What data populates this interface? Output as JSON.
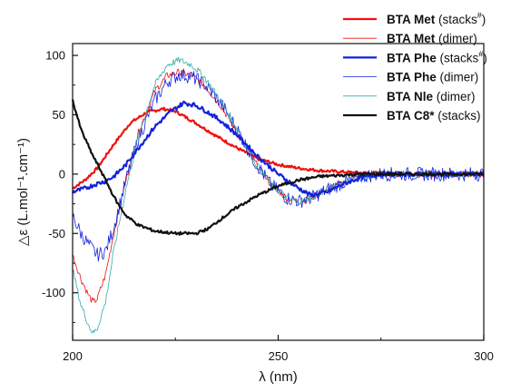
{
  "chart_data": {
    "type": "line",
    "xlabel": "λ (nm)",
    "ylabel": "△ε (L.mol⁻¹.cm⁻¹)",
    "xlim": [
      200,
      300
    ],
    "ylim": [
      -140,
      110
    ],
    "x_ticks": [
      "200",
      "250",
      "300"
    ],
    "y_ticks": [
      "100",
      "50",
      "0",
      "-50",
      "-100"
    ],
    "x_tick_values": [
      200,
      250,
      300
    ],
    "y_tick_values": [
      100,
      50,
      0,
      -50,
      -100
    ],
    "legend_position": "top-right",
    "series": [
      {
        "name_bold": "BTA Met",
        "name_rest": " (stacks",
        "name_sup": "#",
        "name_close": ")",
        "color": "#ee1111",
        "width": 2.2,
        "noise": 1.2,
        "x": [
          200,
          203,
          206,
          210,
          214,
          218,
          222,
          225,
          230,
          235,
          240,
          245,
          250,
          255,
          260,
          265,
          270,
          275,
          280,
          290,
          300
        ],
        "y": [
          -12,
          -5,
          5,
          25,
          43,
          52,
          55,
          53,
          43,
          32,
          22,
          13,
          8,
          5,
          3,
          2,
          1,
          1,
          0,
          0,
          0
        ]
      },
      {
        "name_bold": "BTA Met",
        "name_rest": " (dimer)",
        "name_sup": "",
        "name_close": "",
        "color": "#ee1111",
        "width": 0.8,
        "noise": 3,
        "x": [
          200,
          202,
          204,
          205,
          206,
          208,
          210,
          213,
          216,
          220,
          223,
          226,
          229,
          232,
          236,
          240,
          244,
          248,
          252,
          255,
          258,
          262,
          266,
          270,
          275,
          280,
          290,
          300
        ],
        "y": [
          -68,
          -88,
          -103,
          -108,
          -105,
          -85,
          -50,
          -5,
          35,
          70,
          83,
          86,
          83,
          75,
          58,
          35,
          12,
          -8,
          -20,
          -23,
          -20,
          -13,
          -7,
          -2,
          0,
          0,
          0,
          0
        ]
      },
      {
        "name_bold": "BTA Phe",
        "name_rest": " (stacks",
        "name_sup": "#",
        "name_close": ")",
        "color": "#1122dd",
        "width": 2.2,
        "noise": 1.8,
        "x": [
          200,
          203,
          206,
          208,
          210,
          213,
          216,
          220,
          224,
          227,
          230,
          233,
          236,
          240,
          245,
          250,
          255,
          258,
          262,
          266,
          270,
          275,
          280,
          290,
          300
        ],
        "y": [
          -15,
          -12,
          -8,
          -6,
          -2,
          8,
          22,
          40,
          53,
          60,
          58,
          52,
          45,
          33,
          15,
          0,
          -12,
          -18,
          -15,
          -8,
          -3,
          0,
          0,
          0,
          0
        ]
      },
      {
        "name_bold": "BTA Phe",
        "name_rest": " (dimer)",
        "name_sup": "",
        "name_close": "",
        "color": "#1122dd",
        "width": 0.8,
        "noise": 6,
        "x": [
          200,
          202,
          204,
          206,
          208,
          210,
          213,
          216,
          220,
          223,
          226,
          229,
          232,
          236,
          240,
          244,
          248,
          252,
          255,
          258,
          262,
          266,
          270,
          275,
          280,
          290,
          300
        ],
        "y": [
          -35,
          -50,
          -60,
          -68,
          -65,
          -45,
          -5,
          30,
          62,
          78,
          84,
          82,
          76,
          60,
          38,
          12,
          -8,
          -20,
          -23,
          -20,
          -13,
          -7,
          -2,
          0,
          0,
          0,
          0
        ]
      },
      {
        "name_bold": "BTA Nle",
        "name_rest": " (dimer)",
        "name_sup": "",
        "name_close": "",
        "color": "#33aaaa",
        "width": 0.8,
        "noise": 3,
        "x": [
          200,
          202,
          204,
          205,
          206,
          208,
          210,
          213,
          216,
          220,
          223,
          226,
          229,
          232,
          236,
          240,
          244,
          248,
          252,
          255,
          258,
          262,
          266,
          270,
          275,
          280,
          290,
          300
        ],
        "y": [
          -80,
          -110,
          -128,
          -134,
          -130,
          -108,
          -65,
          -12,
          32,
          75,
          92,
          96,
          92,
          82,
          62,
          38,
          12,
          -8,
          -20,
          -23,
          -20,
          -13,
          -7,
          -2,
          0,
          0,
          0,
          0
        ]
      },
      {
        "name_bold": "BTA C8*",
        "name_rest": " (stacks)",
        "name_sup": "",
        "name_close": "",
        "color": "#111111",
        "width": 2.2,
        "noise": 1.2,
        "x": [
          200,
          201,
          202,
          203,
          205,
          207,
          209,
          211,
          213,
          216,
          220,
          225,
          230,
          233,
          236,
          240,
          245,
          250,
          255,
          260,
          265,
          270,
          275,
          280,
          290,
          300
        ],
        "y": [
          62,
          50,
          38,
          30,
          15,
          2,
          -12,
          -25,
          -35,
          -43,
          -48,
          -50,
          -50,
          -46,
          -38,
          -28,
          -18,
          -10,
          -5,
          -2,
          -1,
          0,
          0,
          0,
          0,
          0
        ]
      }
    ]
  }
}
